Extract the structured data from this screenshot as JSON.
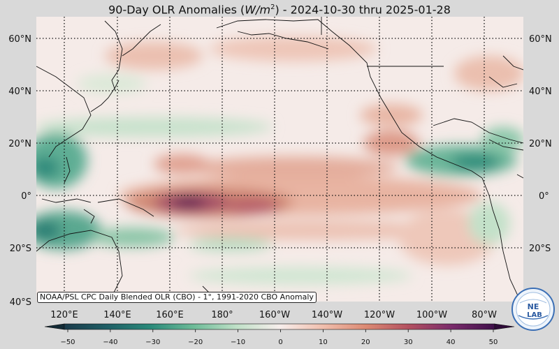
{
  "title": {
    "prefix": "90-Day OLR Anomalies (",
    "unit_base": "W/m",
    "unit_exp": "2",
    "suffix": ") - 2024-10-30 thru 2025-01-28"
  },
  "credit": "NOAA/PSL CPC Daily Blended OLR (CBO) - 1°, 1991-2020 CBO Anomaly",
  "logo": {
    "icon": "noaa-physical-sciences-lab-logo",
    "text_line1": "NE",
    "text_line2": "LAB"
  },
  "map": {
    "lat_labels": [
      "60°N",
      "40°N",
      "20°N",
      "0°",
      "20°S",
      "40°S"
    ],
    "lon_labels": [
      "120°E",
      "140°E",
      "160°E",
      "180°",
      "160°W",
      "140°W",
      "120°W",
      "100°W",
      "80°W"
    ],
    "colorbar": {
      "ticks": [
        "−50",
        "−40",
        "−30",
        "−20",
        "−10",
        "0",
        "10",
        "20",
        "30",
        "40",
        "50"
      ],
      "colors": [
        "#1a3a4a",
        "#1f5f66",
        "#2a8a7a",
        "#6dbb98",
        "#bfe0c7",
        "#f7eeec",
        "#f0bfae",
        "#dc8a73",
        "#b35060",
        "#7a2b6b",
        "#3f0f4a"
      ]
    }
  },
  "colors": {
    "background": "#d9d9d9",
    "ocean_neutral": "#f5ebe8",
    "dry_anomaly": "#7a1f5a",
    "wet_anomaly": "#2e8f7a"
  }
}
